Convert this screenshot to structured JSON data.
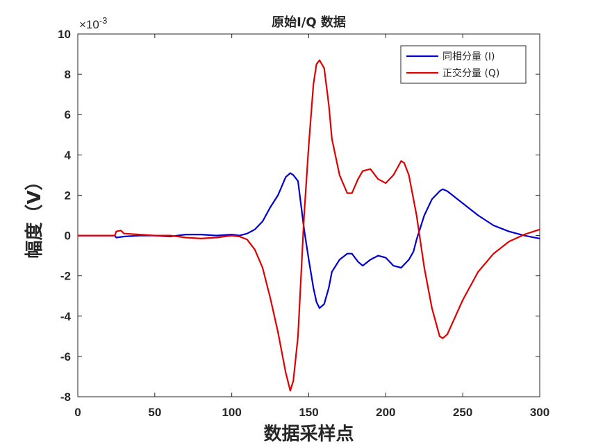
{
  "chart_data": {
    "type": "line",
    "title": "原始I/Q 数据",
    "xlabel": "数据采样点",
    "ylabel": "幅度（V）",
    "y_exponent_label": "×10",
    "y_exponent_power": "-3",
    "xlim": [
      0,
      300
    ],
    "ylim": [
      -8,
      10
    ],
    "xticks": [
      0,
      50,
      100,
      150,
      200,
      250,
      300
    ],
    "yticks": [
      -8,
      -6,
      -4,
      -2,
      0,
      2,
      4,
      6,
      8,
      10
    ],
    "grid": false,
    "legend_position": "top-right",
    "series": [
      {
        "name": "同相分量 (I)",
        "color": "#0000d0",
        "x": [
          0,
          24,
          25,
          30,
          40,
          50,
          60,
          70,
          80,
          90,
          100,
          105,
          110,
          115,
          120,
          125,
          130,
          135,
          138,
          140,
          143,
          145,
          147,
          150,
          153,
          155,
          157,
          160,
          163,
          165,
          170,
          175,
          178,
          182,
          185,
          190,
          195,
          200,
          205,
          210,
          215,
          218,
          220,
          225,
          230,
          235,
          237,
          240,
          250,
          260,
          270,
          280,
          290,
          300
        ],
        "values": [
          0,
          0,
          -0.1,
          -0.05,
          0,
          0,
          -0.05,
          0.05,
          0.05,
          0,
          0.05,
          0,
          0.1,
          0.3,
          0.7,
          1.4,
          2.0,
          2.9,
          3.1,
          3.0,
          2.7,
          1.5,
          0.3,
          -1.2,
          -2.6,
          -3.3,
          -3.6,
          -3.4,
          -2.6,
          -1.8,
          -1.2,
          -0.9,
          -0.9,
          -1.3,
          -1.5,
          -1.2,
          -1.0,
          -1.1,
          -1.5,
          -1.6,
          -1.2,
          -0.8,
          -0.2,
          1.0,
          1.8,
          2.2,
          2.3,
          2.2,
          1.6,
          1.0,
          0.5,
          0.2,
          0.0,
          -0.15
        ]
      },
      {
        "name": "正交分量 (Q)",
        "color": "#e00000",
        "x": [
          0,
          24,
          25,
          28,
          30,
          40,
          50,
          60,
          70,
          80,
          90,
          100,
          105,
          110,
          115,
          120,
          125,
          130,
          135,
          138,
          140,
          143,
          145,
          147,
          150,
          153,
          155,
          157,
          160,
          163,
          165,
          170,
          175,
          178,
          182,
          185,
          190,
          195,
          200,
          205,
          210,
          212,
          215,
          220,
          225,
          230,
          235,
          237,
          240,
          250,
          260,
          270,
          280,
          290,
          300
        ],
        "values": [
          0,
          0,
          0.2,
          0.25,
          0.1,
          0.05,
          0,
          0,
          -0.1,
          -0.15,
          -0.1,
          0,
          -0.05,
          -0.2,
          -0.7,
          -1.6,
          -3.1,
          -4.8,
          -6.8,
          -7.7,
          -7.2,
          -5.0,
          -2.0,
          1.0,
          4.5,
          7.5,
          8.5,
          8.7,
          8.3,
          6.5,
          4.8,
          3.0,
          2.1,
          2.1,
          2.8,
          3.2,
          3.3,
          2.8,
          2.6,
          3.0,
          3.7,
          3.6,
          3.0,
          1.0,
          -1.6,
          -3.6,
          -5.0,
          -5.1,
          -4.9,
          -3.2,
          -1.8,
          -0.9,
          -0.3,
          0.05,
          0.3
        ]
      }
    ]
  }
}
